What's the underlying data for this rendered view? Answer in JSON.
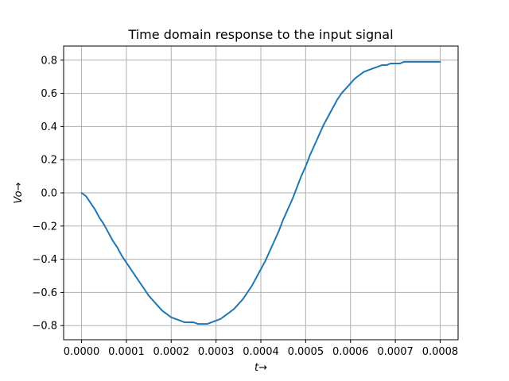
{
  "chart_data": {
    "type": "line",
    "title": "Time domain response to the input signal",
    "xlabel": "t→",
    "ylabel": "Vo→",
    "xlim": [
      -4e-05,
      0.00084
    ],
    "ylim": [
      -0.885,
      0.885
    ],
    "xticks": [
      0.0,
      0.0001,
      0.0002,
      0.0003,
      0.0004,
      0.0005,
      0.0006,
      0.0007,
      0.0008
    ],
    "xtick_labels": [
      "0.0000",
      "0.0001",
      "0.0002",
      "0.0003",
      "0.0004",
      "0.0005",
      "0.0006",
      "0.0007",
      "0.0008"
    ],
    "yticks": [
      -0.8,
      -0.6,
      -0.4,
      -0.2,
      0.0,
      0.2,
      0.4,
      0.6,
      0.8
    ],
    "ytick_labels": [
      "−0.8",
      "−0.6",
      "−0.4",
      "−0.2",
      "0.0",
      "0.2",
      "0.4",
      "0.6",
      "0.8"
    ],
    "grid": true,
    "series": [
      {
        "color": "#1f77b4",
        "x": [
          0.0,
          1e-05,
          2e-05,
          3e-05,
          4e-05,
          5e-05,
          6e-05,
          7e-05,
          8e-05,
          9e-05,
          0.0001,
          0.00011,
          0.00012,
          0.00013,
          0.00014,
          0.00015,
          0.00016,
          0.00017,
          0.00018,
          0.00019,
          0.0002,
          0.00021,
          0.00022,
          0.00023,
          0.00024,
          0.00025,
          0.00026,
          0.00027,
          0.00028,
          0.00029,
          0.0003,
          0.00031,
          0.00032,
          0.00033,
          0.00034,
          0.00035,
          0.00036,
          0.00037,
          0.00038,
          0.00039,
          0.0004,
          0.00041,
          0.00042,
          0.00043,
          0.00044,
          0.00045,
          0.00046,
          0.00047,
          0.00048,
          0.00049,
          0.0005,
          0.00051,
          0.00052,
          0.00053,
          0.00054,
          0.00055,
          0.00056,
          0.00057,
          0.00058,
          0.00059,
          0.0006,
          0.00061,
          0.00062,
          0.00063,
          0.00064,
          0.00065,
          0.00066,
          0.00067,
          0.00068,
          0.00069,
          0.0007,
          0.00071,
          0.00072,
          0.00073,
          0.00074,
          0.00075,
          0.00076,
          0.00077,
          0.00078,
          0.00079,
          0.0008
        ],
        "y": [
          0.0,
          -0.02,
          -0.06,
          -0.1,
          -0.15,
          -0.19,
          -0.24,
          -0.29,
          -0.33,
          -0.38,
          -0.42,
          -0.46,
          -0.5,
          -0.54,
          -0.58,
          -0.62,
          -0.65,
          -0.68,
          -0.71,
          -0.73,
          -0.75,
          -0.76,
          -0.77,
          -0.78,
          -0.78,
          -0.78,
          -0.79,
          -0.79,
          -0.79,
          -0.78,
          -0.77,
          -0.76,
          -0.74,
          -0.72,
          -0.7,
          -0.67,
          -0.64,
          -0.6,
          -0.56,
          -0.51,
          -0.46,
          -0.41,
          -0.35,
          -0.29,
          -0.23,
          -0.16,
          -0.1,
          -0.04,
          0.03,
          0.1,
          0.16,
          0.23,
          0.29,
          0.35,
          0.41,
          0.46,
          0.51,
          0.56,
          0.6,
          0.63,
          0.66,
          0.69,
          0.71,
          0.73,
          0.74,
          0.75,
          0.76,
          0.77,
          0.77,
          0.78,
          0.78,
          0.78,
          0.79,
          0.79,
          0.79,
          0.79,
          0.79,
          0.79,
          0.79,
          0.79,
          0.79
        ]
      }
    ]
  }
}
